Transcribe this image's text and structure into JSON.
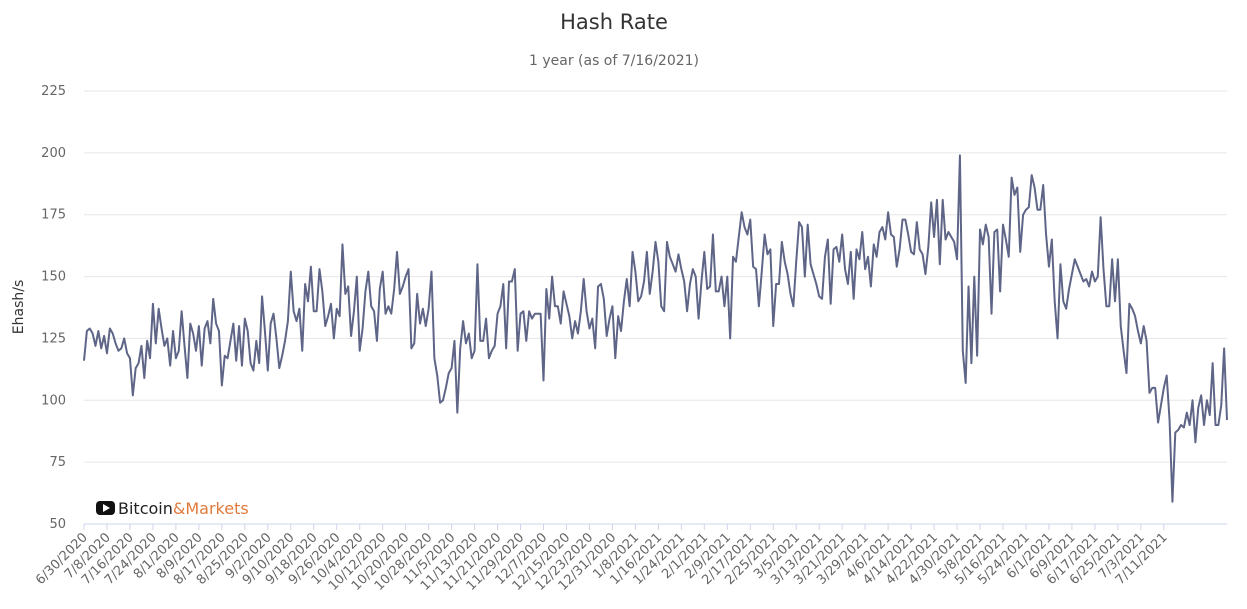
{
  "chart_data": {
    "type": "line",
    "title": "Hash Rate",
    "subtitle": "1 year (as of 7/16/2021)",
    "xlabel": "",
    "ylabel": "Ehash/s",
    "ylim": [
      50,
      225
    ],
    "yticks": [
      50,
      75,
      100,
      125,
      150,
      175,
      200,
      225
    ],
    "grid": true,
    "legend": "none",
    "color": "#5f6587",
    "x_tick_labels": [
      "6/30/2020",
      "7/8/2020",
      "7/16/2020",
      "7/24/2020",
      "8/1/2020",
      "8/9/2020",
      "8/17/2020",
      "8/25/2020",
      "9/2/2020",
      "9/10/2020",
      "9/18/2020",
      "9/26/2020",
      "10/4/2020",
      "10/12/2020",
      "10/20/2020",
      "10/28/2020",
      "11/5/2020",
      "11/13/2020",
      "11/21/2020",
      "11/29/2020",
      "12/7/2020",
      "12/15/2020",
      "12/23/2020",
      "12/31/2020",
      "1/8/2021",
      "1/16/2021",
      "1/24/2021",
      "2/1/2021",
      "2/9/2021",
      "2/17/2021",
      "2/25/2021",
      "3/5/2021",
      "3/13/2021",
      "3/21/2021",
      "3/29/2021",
      "4/6/2021",
      "4/14/2021",
      "4/22/2021",
      "4/30/2021",
      "5/8/2021",
      "5/16/2021",
      "5/24/2021",
      "6/1/2021",
      "6/9/2021",
      "6/17/2021",
      "6/25/2021",
      "7/3/2021",
      "7/11/2021"
    ],
    "series": [
      {
        "values": [
          116,
          128,
          129,
          127,
          122,
          128,
          121,
          126,
          119,
          129,
          127,
          123,
          120,
          121,
          125,
          119,
          117,
          102,
          113,
          115,
          122,
          109,
          124,
          117,
          139,
          123,
          137,
          129,
          122,
          125,
          114,
          128,
          117,
          120,
          136,
          122,
          109,
          131,
          127,
          120,
          130,
          114,
          129,
          132,
          123,
          141,
          131,
          128,
          106,
          118,
          117,
          124,
          131,
          116,
          130,
          114,
          133,
          128,
          115,
          112,
          124,
          115,
          142,
          128,
          112,
          131,
          135,
          125,
          113,
          118,
          124,
          132,
          152,
          136,
          132,
          137,
          120,
          147,
          140,
          154,
          136,
          136,
          153,
          144,
          130,
          134,
          139,
          125,
          137,
          134,
          163,
          143,
          146,
          126,
          136,
          150,
          120,
          129,
          144,
          152,
          138,
          136,
          124,
          145,
          152,
          135,
          138,
          135,
          145,
          160,
          143,
          146,
          150,
          153,
          121,
          123,
          143,
          131,
          137,
          130,
          137,
          152,
          117,
          110,
          99,
          100,
          105,
          111,
          113,
          124,
          95,
          121,
          132,
          123,
          127,
          117,
          120,
          155,
          124,
          124,
          133,
          117,
          120,
          122,
          135,
          138,
          147,
          121,
          148,
          148,
          153,
          120,
          135,
          136,
          124,
          136,
          133,
          135,
          135,
          135,
          108,
          145,
          133,
          150,
          138,
          138,
          131,
          144,
          139,
          134,
          125,
          132,
          127,
          136,
          149,
          136,
          129,
          133,
          121,
          146,
          147,
          141,
          126,
          133,
          138,
          117,
          134,
          128,
          140,
          149,
          138,
          160,
          152,
          140,
          142,
          148,
          160,
          143,
          152,
          164,
          156,
          138,
          136,
          164,
          158,
          155,
          152,
          159,
          153,
          148,
          136,
          147,
          153,
          150,
          133,
          148,
          160,
          145,
          146,
          167,
          144,
          144,
          150,
          138,
          150,
          125,
          158,
          156,
          166,
          176,
          170,
          167,
          173,
          154,
          153,
          138,
          152,
          167,
          159,
          161,
          130,
          147,
          147,
          164,
          156,
          151,
          143,
          138,
          156,
          172,
          170,
          150,
          171,
          155,
          151,
          147,
          142,
          141,
          158,
          165,
          139,
          161,
          162,
          156,
          167,
          153,
          147,
          160,
          141,
          161,
          157,
          168,
          153,
          158,
          146,
          163,
          158,
          168,
          170,
          165,
          176,
          167,
          166,
          154,
          161,
          173,
          173,
          167,
          160,
          159,
          172,
          161,
          159,
          151,
          162,
          180,
          166,
          181,
          155,
          181,
          165,
          168,
          166,
          164,
          157,
          199,
          120,
          107,
          146,
          115,
          150,
          118,
          169,
          163,
          171,
          166,
          135,
          168,
          169,
          144,
          171,
          165,
          158,
          190,
          183,
          186,
          160,
          175,
          177,
          178,
          191,
          186,
          177,
          177,
          187,
          167,
          154,
          165,
          140,
          125,
          155,
          140,
          137,
          145,
          151,
          157,
          154,
          151,
          148,
          149,
          146,
          152,
          148,
          150,
          174,
          153,
          138,
          138,
          157,
          140,
          157,
          130,
          120,
          111,
          139,
          137,
          134,
          128,
          123,
          130,
          124,
          103,
          105,
          105,
          91,
          98,
          105,
          110,
          92,
          59,
          87,
          88,
          90,
          89,
          95,
          90,
          100,
          83,
          97,
          102,
          90,
          100,
          94,
          115,
          90,
          90,
          98,
          121,
          92
        ]
      }
    ]
  },
  "watermark": {
    "brand_part1": "Bitcoin",
    "brand_part2": "&Markets",
    "icon": "play-icon"
  }
}
